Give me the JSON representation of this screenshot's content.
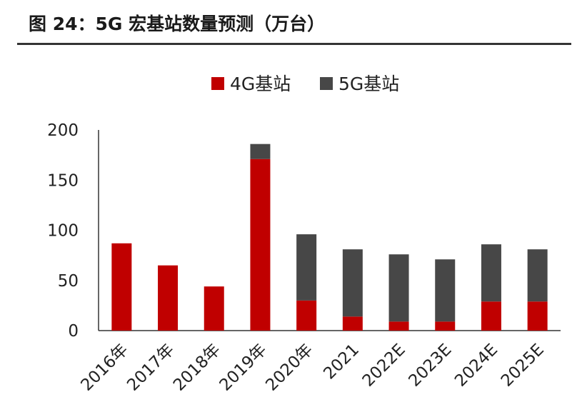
{
  "figure": {
    "title": "图 24：5G 宏基站数量预测（万台）"
  },
  "chart_data": {
    "type": "bar",
    "stacked": true,
    "categories": [
      "2016年",
      "2017年",
      "2018年",
      "2019年",
      "2020年",
      "2021",
      "2022E",
      "2023E",
      "2024E",
      "2025E"
    ],
    "series": [
      {
        "name": "4G基站",
        "color": "#c00000",
        "values": [
          87,
          65,
          44,
          171,
          30,
          14,
          9,
          9,
          29,
          29
        ]
      },
      {
        "name": "5G基站",
        "color": "#474747",
        "values": [
          0,
          0,
          0,
          15,
          66,
          67,
          67,
          62,
          57,
          52
        ]
      }
    ],
    "yticks": [
      0,
      50,
      100,
      150,
      200
    ],
    "ylim": [
      0,
      200
    ],
    "legend_position": "top",
    "grid": false
  }
}
